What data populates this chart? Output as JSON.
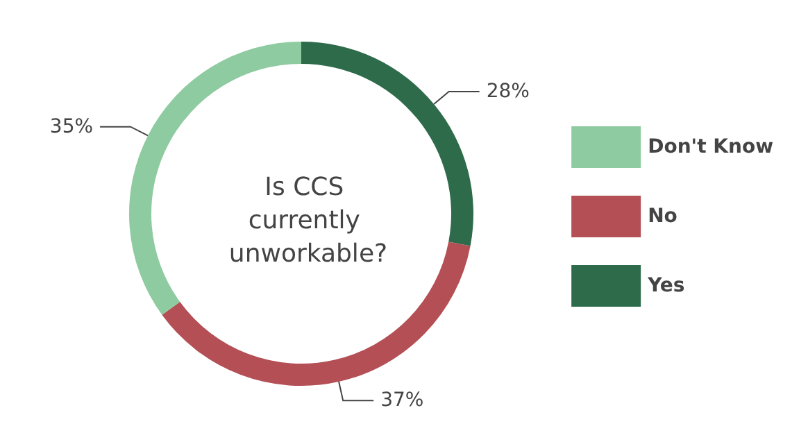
{
  "chart_data": {
    "type": "donut",
    "title": "Is CCS currently unworkable?",
    "categories": [
      "Yes",
      "No",
      "Don't Know"
    ],
    "values": [
      28,
      37,
      35
    ],
    "colors": [
      "#2e6b4a",
      "#b34f55",
      "#8ecba1"
    ],
    "value_labels": [
      "28%",
      "37%",
      "35%"
    ],
    "legend": "right"
  }
}
